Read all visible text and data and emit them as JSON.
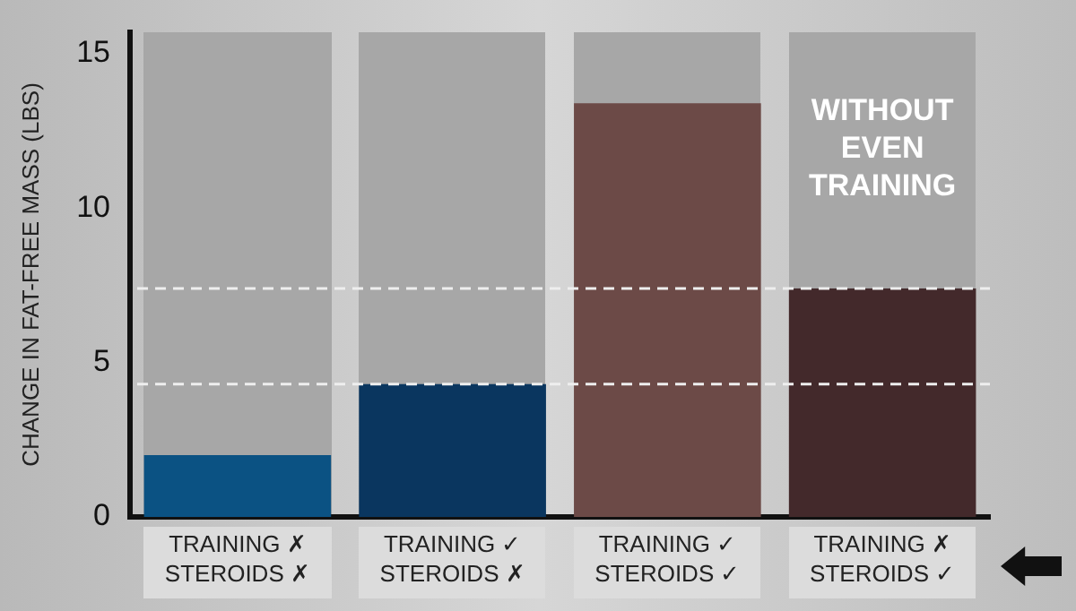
{
  "chart_data": {
    "type": "bar",
    "ylabel": "CHANGE IN FAT-FREE MASS (LBS)",
    "categories": [
      "TRAINING ✗\nSTEROIDS ✗",
      "TRAINING ✓\nSTEROIDS ✗",
      "TRAINING ✓\nSTEROIDS ✓",
      "TRAINING ✗\nSTEROIDS ✓"
    ],
    "values": [
      2.0,
      4.3,
      13.4,
      7.4
    ],
    "colors": [
      "#0b5283",
      "#0a365f",
      "#6c4a47",
      "#43292b"
    ],
    "ylim": [
      0,
      15.7
    ],
    "yticks": [
      0,
      5,
      10,
      15
    ],
    "ref_lines": [
      {
        "axis": "y",
        "value": 4.3,
        "color": "#eeeeee",
        "line_style": "dashed"
      },
      {
        "axis": "y",
        "value": 7.4,
        "color": "#eeeeee",
        "line_style": "dashed"
      }
    ],
    "annotations": [
      "WITHOUT EVEN TRAINING"
    ],
    "grid": false,
    "legend": false
  }
}
